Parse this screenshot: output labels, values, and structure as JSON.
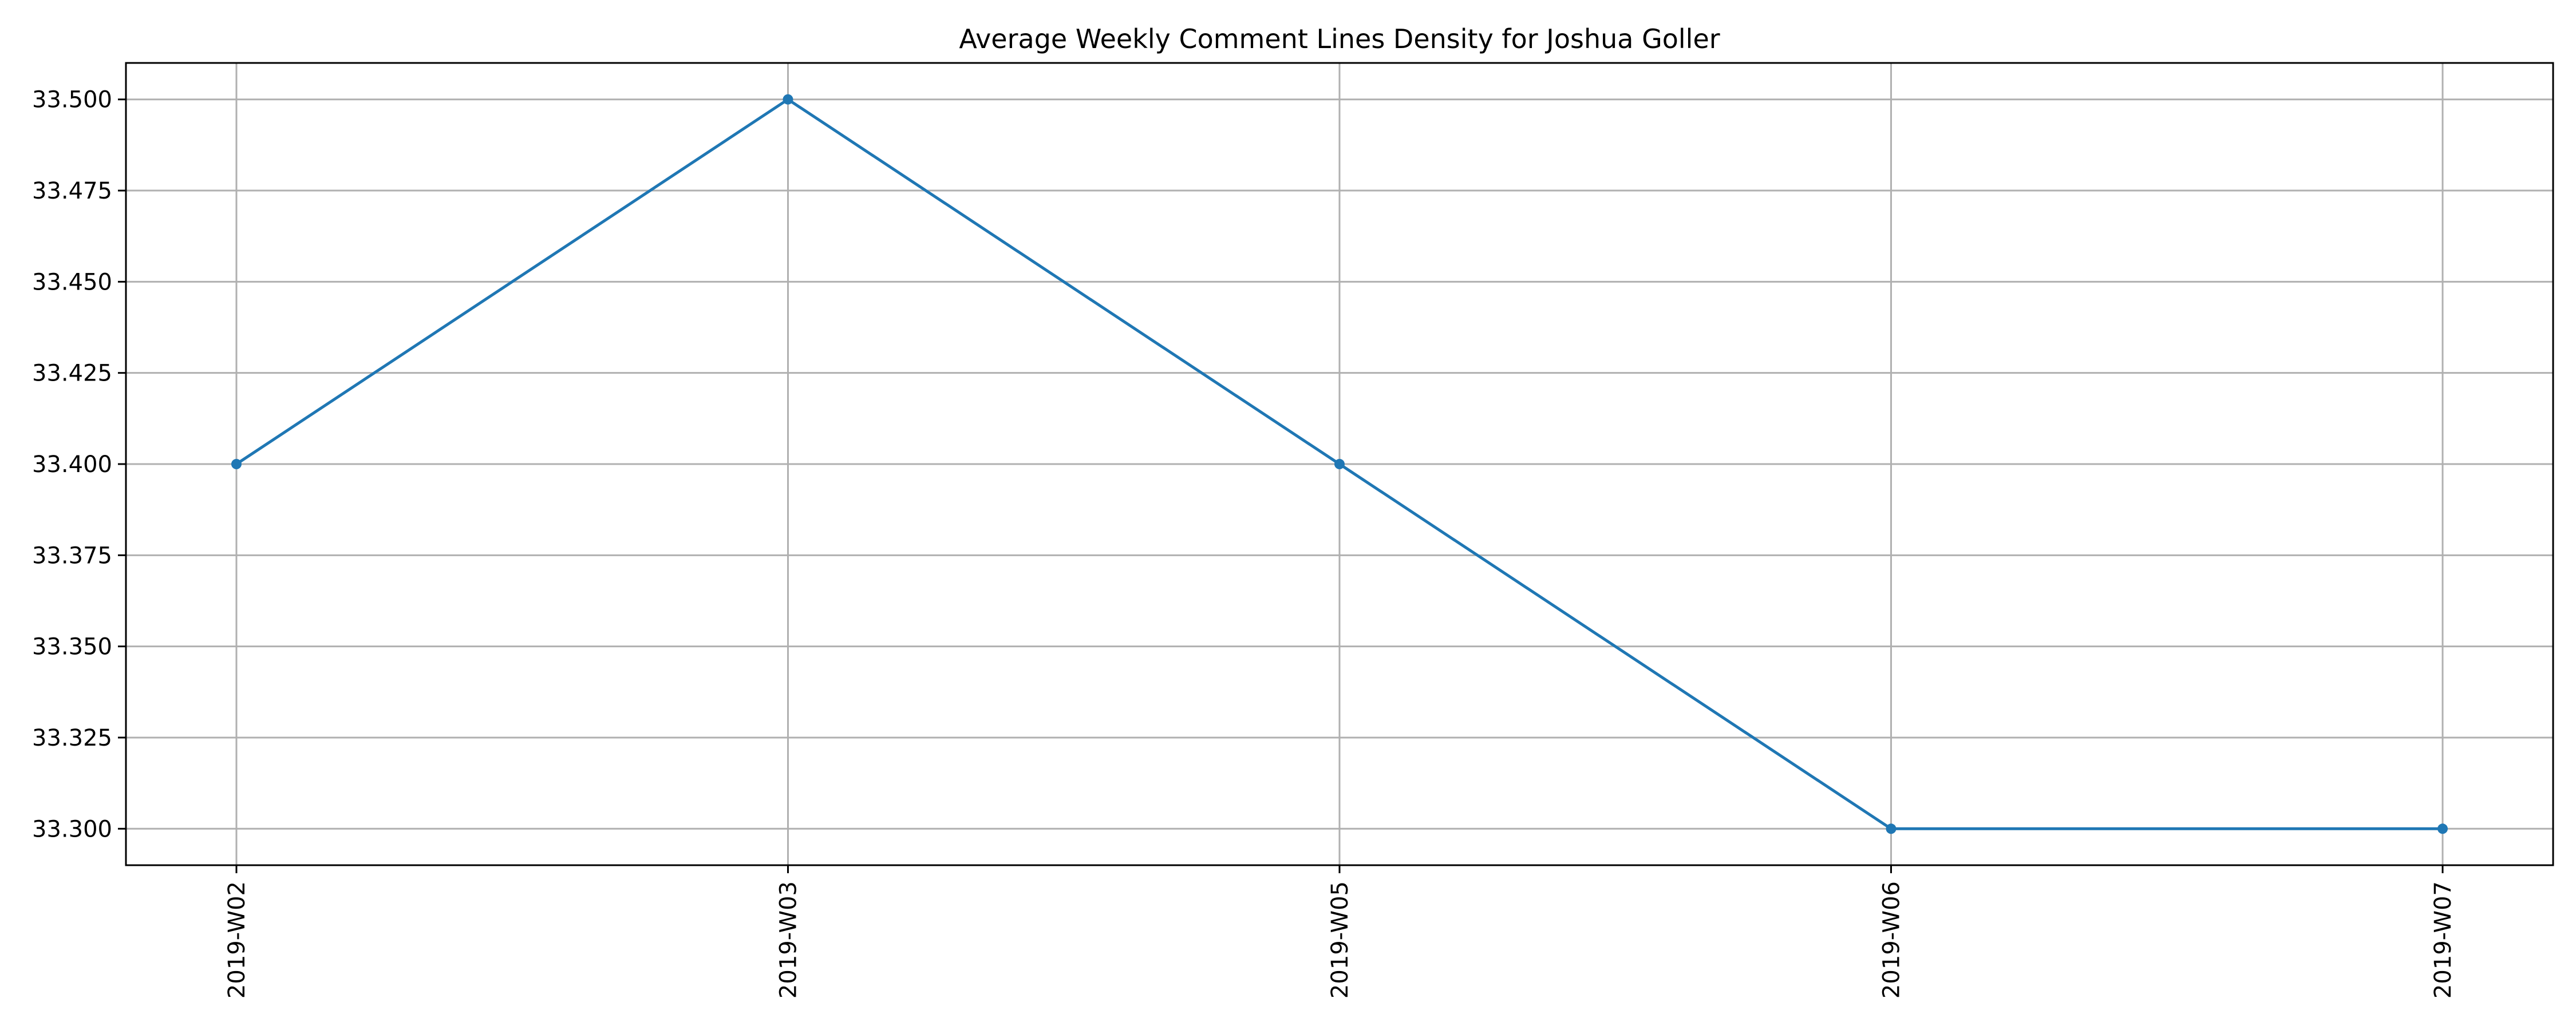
{
  "chart_data": {
    "type": "line",
    "title": "Average Weekly Comment Lines Density for Joshua Goller",
    "xlabel": "",
    "ylabel": "",
    "categories": [
      "2019-W02",
      "2019-W03",
      "2019-W05",
      "2019-W06",
      "2019-W07"
    ],
    "series": [
      {
        "values": [
          33.4,
          33.5,
          33.4,
          33.3,
          33.3
        ],
        "color": "#1f77b4"
      }
    ],
    "ylim": [
      33.29,
      33.51
    ],
    "yticks": [
      33.3,
      33.325,
      33.35,
      33.375,
      33.4,
      33.425,
      33.45,
      33.475,
      33.5
    ],
    "ytick_labels": [
      "33.300",
      "33.325",
      "33.350",
      "33.375",
      "33.400",
      "33.425",
      "33.450",
      "33.475",
      "33.500"
    ],
    "grid": true,
    "marker": "circle"
  }
}
